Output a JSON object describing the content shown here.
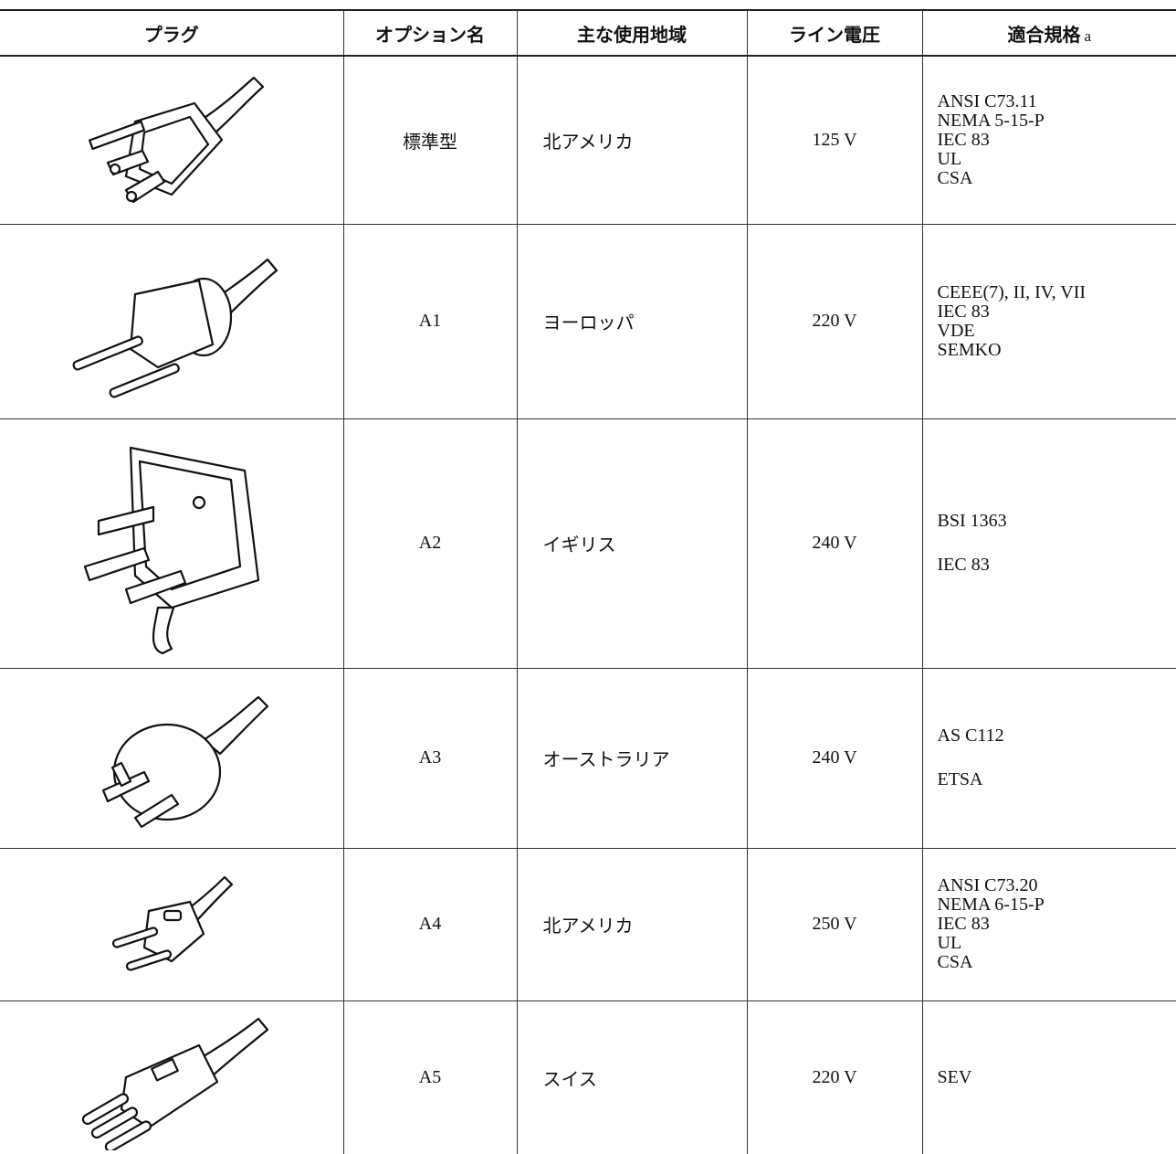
{
  "header": {
    "columns": [
      "プラグ",
      "オプション名",
      "主な使用地域",
      "ライン電圧",
      "適合規格"
    ],
    "footnote": "a"
  },
  "table": {
    "rows": [
      {
        "option": "標準型",
        "region": "北アメリカ",
        "voltage": "125 V",
        "standards": [
          "ANSI C73.11",
          "NEMA 5-15-P",
          "IEC 83",
          "UL",
          "CSA"
        ]
      },
      {
        "option": "A1",
        "region": "ヨーロッパ",
        "voltage": "220 V",
        "standards": [
          "CEEE(7), II, IV, VII",
          "IEC 83",
          "VDE",
          "SEMKO"
        ]
      },
      {
        "option": "A2",
        "region": "イギリス",
        "voltage": "240 V",
        "standards": [
          "BSI 1363",
          "IEC 83"
        ]
      },
      {
        "option": "A3",
        "region": "オーストラリア",
        "voltage": "240 V",
        "standards": [
          "AS C112",
          "ETSA"
        ]
      },
      {
        "option": "A4",
        "region": "北アメリカ",
        "voltage": "250 V",
        "standards": [
          "ANSI C73.20",
          "NEMA 6-15-P",
          "IEC 83",
          "UL",
          "CSA"
        ]
      },
      {
        "option": "A5",
        "region": "スイス",
        "voltage": "220 V",
        "standards": [
          "SEV"
        ]
      }
    ]
  }
}
